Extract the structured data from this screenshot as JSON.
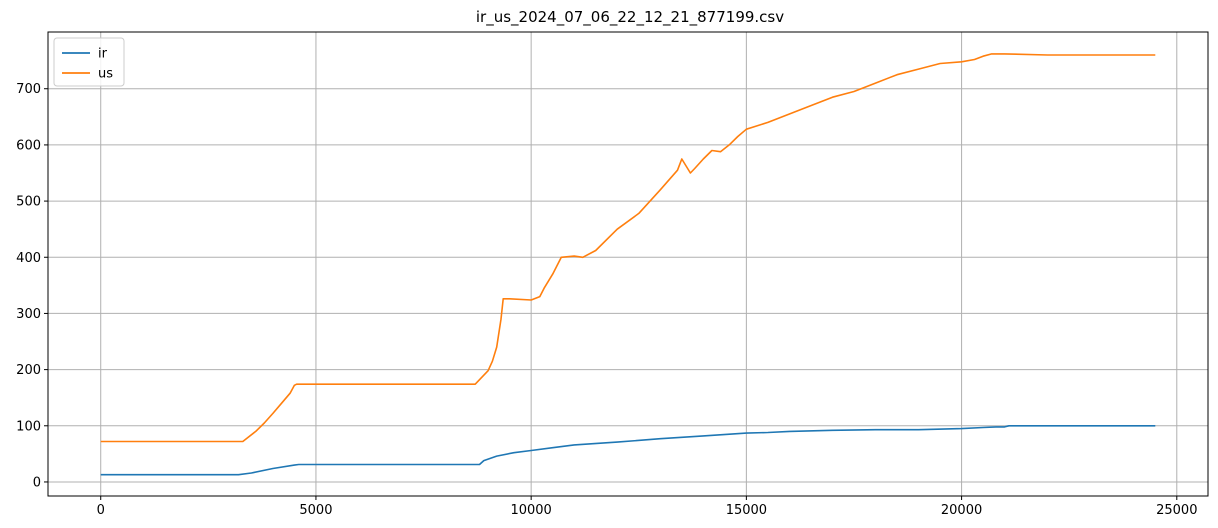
{
  "chart_data": {
    "type": "line",
    "title": "ir_us_2024_07_06_22_12_21_877199.csv",
    "xlabel": "",
    "ylabel": "",
    "xlim": [
      -1225,
      25725
    ],
    "ylim": [
      -25,
      801
    ],
    "xticks": [
      0,
      5000,
      10000,
      15000,
      20000,
      25000
    ],
    "yticks": [
      0,
      100,
      200,
      300,
      400,
      500,
      600,
      700
    ],
    "grid": true,
    "legend_position": "top-left",
    "series": [
      {
        "name": "ir",
        "color": "#1f77b4",
        "x": [
          0,
          3200,
          3500,
          4000,
          4500,
          4600,
          5000,
          6000,
          7000,
          8000,
          8800,
          8900,
          9200,
          9600,
          10000,
          10500,
          11000,
          12000,
          13000,
          14000,
          15000,
          15500,
          16000,
          17000,
          18000,
          19000,
          20000,
          20500,
          20800,
          21000,
          21100,
          22000,
          23000,
          24000,
          24500
        ],
        "values": [
          13,
          13,
          16,
          24,
          30,
          31,
          31,
          31,
          31,
          31,
          31,
          38,
          46,
          52,
          56,
          61,
          66,
          71,
          77,
          82,
          87,
          88,
          90,
          92,
          93,
          93,
          95,
          97,
          98,
          98,
          100,
          100,
          100,
          100,
          100
        ]
      },
      {
        "name": "us",
        "color": "#ff7f0e",
        "x": [
          0,
          3100,
          3200,
          3300,
          3400,
          3600,
          3800,
          4000,
          4200,
          4400,
          4500,
          4550,
          5000,
          6000,
          7000,
          8000,
          8700,
          8800,
          9000,
          9100,
          9200,
          9300,
          9350,
          9500,
          10000,
          10200,
          10300,
          10500,
          10700,
          11000,
          11200,
          11500,
          12000,
          12500,
          13000,
          13400,
          13500,
          13700,
          13800,
          14000,
          14200,
          14400,
          14600,
          14800,
          15000,
          15500,
          16000,
          16500,
          17000,
          17500,
          18000,
          18500,
          19000,
          19500,
          20000,
          20300,
          20500,
          20700,
          21000,
          22000,
          23000,
          24000,
          24500
        ],
        "values": [
          72,
          72,
          72,
          72,
          78,
          90,
          105,
          122,
          140,
          158,
          172,
          174,
          174,
          174,
          174,
          174,
          174,
          182,
          198,
          215,
          240,
          290,
          326,
          326,
          324,
          330,
          345,
          370,
          400,
          402,
          400,
          412,
          450,
          478,
          520,
          555,
          575,
          550,
          558,
          575,
          590,
          588,
          600,
          615,
          628,
          640,
          655,
          670,
          685,
          695,
          710,
          725,
          735,
          745,
          748,
          752,
          758,
          762,
          762,
          760,
          760,
          760,
          760
        ]
      }
    ]
  }
}
